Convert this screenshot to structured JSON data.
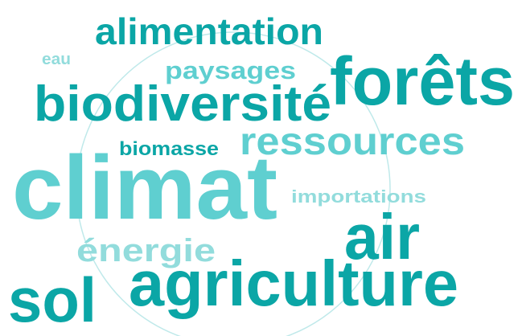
{
  "words": [
    "alimentation",
    "eau",
    "paysages",
    "forêts",
    "biodiversité",
    "ressources",
    "biomasse",
    "climat",
    "importations",
    "air",
    "énergie",
    "agriculture",
    "sol"
  ]
}
